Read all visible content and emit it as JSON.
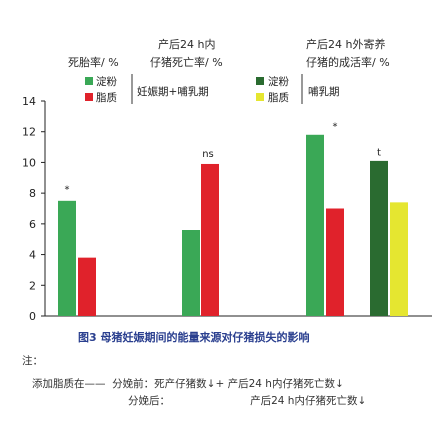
{
  "chart_data": {
    "type": "bar",
    "group_headers": [
      {
        "line1": "",
        "line2": "死胎率/ %"
      },
      {
        "line1": "产后24 h内",
        "line2": "仔猪死亡率/ %"
      },
      {
        "line1": "产后24 h外寄养",
        "line2": "仔猪的成活率/ %"
      }
    ],
    "legend_left": {
      "items": [
        {
          "label": "淀粉",
          "color": "#3aa856"
        },
        {
          "label": "脂质",
          "color": "#e0222b"
        }
      ],
      "period": "妊娠期+哺乳期"
    },
    "legend_right": {
      "items": [
        {
          "label": "淀粉",
          "color": "#2a6b30"
        },
        {
          "label": "脂质",
          "color": "#e5e630"
        }
      ],
      "period": "哺乳期"
    },
    "y_ticks": [
      "0",
      "2",
      "4",
      "6",
      "8",
      "10",
      "12",
      "14"
    ],
    "ylim": [
      0,
      14
    ],
    "bars": [
      {
        "group": 0,
        "value": 7.5,
        "color": "#3aa856"
      },
      {
        "group": 0,
        "value": 3.8,
        "color": "#e0222b"
      },
      {
        "group": 1,
        "value": 5.6,
        "color": "#3aa856"
      },
      {
        "group": 1,
        "value": 9.9,
        "color": "#e0222b"
      },
      {
        "group": 2,
        "value": 11.8,
        "color": "#3aa856"
      },
      {
        "group": 2,
        "value": 7.0,
        "color": "#e0222b"
      },
      {
        "group": 2,
        "value": 10.1,
        "color": "#2a6b30"
      },
      {
        "group": 2,
        "value": 7.4,
        "color": "#e5e630"
      }
    ],
    "annotations": [
      {
        "text": "*",
        "value": 8.3
      },
      {
        "text": "ns",
        "value": 10.6
      },
      {
        "text": "*",
        "value": 12.4
      },
      {
        "text": "t",
        "value": 10.7
      }
    ],
    "caption": "图3  母猪妊娠期间的能量来源对仔猪损失的影响"
  },
  "notes": {
    "label": "注：",
    "line1": "添加脂质在——  分娩前：死产仔猪数↓+ 产后24 h内仔猪死亡数↓",
    "line2": "分娩后：                        产后24 h内仔猪死亡数↓"
  }
}
